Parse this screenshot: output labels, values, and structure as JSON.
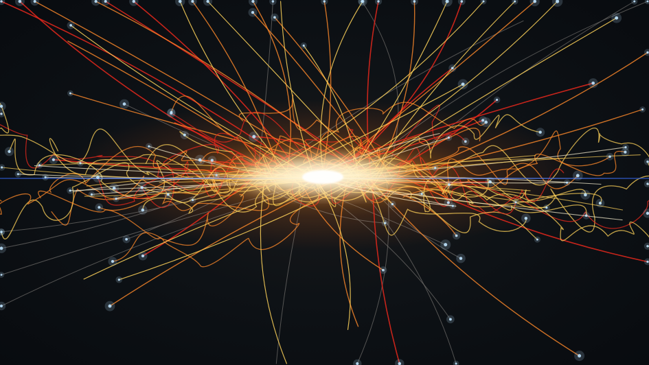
{
  "palette": {
    "background": "#0b0f14",
    "core_glow": "#fff7d6",
    "hot_yellow": "#ffd35a",
    "orange": "#ff8a2a",
    "red": "#e8281c",
    "pale_track": "#c9c2b8",
    "beam_blue": "#3a6bd6",
    "particle_tip": "#bfe4ff"
  },
  "scene": {
    "beam_axis": "horizontal",
    "track_count_estimate": 140
  }
}
